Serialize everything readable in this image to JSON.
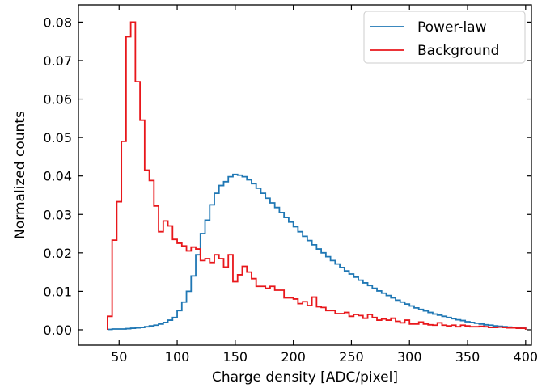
{
  "chart_data": {
    "type": "line",
    "style": "step histogram",
    "xlabel": "Charge density [ADC/pixel]",
    "ylabel": "Normalized counts",
    "xlim": [
      15,
      405
    ],
    "ylim": [
      -0.004,
      0.0845
    ],
    "xticks": [
      50,
      100,
      150,
      200,
      250,
      300,
      350,
      400
    ],
    "xtick_labels": [
      "50",
      "100",
      "150",
      "200",
      "250",
      "300",
      "350",
      "400"
    ],
    "yticks": [
      0.0,
      0.01,
      0.02,
      0.03,
      0.04,
      0.05,
      0.06,
      0.07,
      0.08
    ],
    "ytick_labels": [
      "0.00",
      "0.01",
      "0.02",
      "0.03",
      "0.04",
      "0.05",
      "0.06",
      "0.07",
      "0.08"
    ],
    "grid": false,
    "legend_position": "top-right",
    "bins": {
      "start": 40,
      "width": 4,
      "count": 90
    },
    "series": [
      {
        "name": "Power-law",
        "color": "#1f77b4",
        "values": [
          0.0001,
          0.0002,
          0.0002,
          0.0002,
          0.0003,
          0.0004,
          0.0005,
          0.0006,
          0.0008,
          0.001,
          0.0012,
          0.0015,
          0.0019,
          0.0025,
          0.0032,
          0.005,
          0.0072,
          0.01,
          0.014,
          0.0195,
          0.025,
          0.0285,
          0.0325,
          0.0355,
          0.0375,
          0.0385,
          0.0398,
          0.0404,
          0.0402,
          0.0398,
          0.039,
          0.038,
          0.0368,
          0.0355,
          0.0342,
          0.033,
          0.0318,
          0.0305,
          0.0292,
          0.028,
          0.0268,
          0.0255,
          0.0243,
          0.0232,
          0.0221,
          0.021,
          0.02,
          0.019,
          0.018,
          0.0171,
          0.0162,
          0.0153,
          0.0145,
          0.0137,
          0.0129,
          0.0122,
          0.0115,
          0.0108,
          0.0101,
          0.0095,
          0.0089,
          0.0083,
          0.0077,
          0.0072,
          0.0067,
          0.0062,
          0.0057,
          0.0053,
          0.0049,
          0.0045,
          0.0041,
          0.0038,
          0.0035,
          0.0032,
          0.0029,
          0.0026,
          0.0024,
          0.0021,
          0.0019,
          0.0017,
          0.0015,
          0.0013,
          0.0012,
          0.001,
          0.0009,
          0.0008,
          0.0007,
          0.0006,
          0.0005,
          0.0004
        ]
      },
      {
        "name": "Background",
        "color": "#e8171b",
        "values": [
          0.0035,
          0.0233,
          0.0333,
          0.049,
          0.0762,
          0.08,
          0.0645,
          0.0545,
          0.0415,
          0.0388,
          0.0322,
          0.0255,
          0.0283,
          0.027,
          0.0235,
          0.0225,
          0.0218,
          0.0205,
          0.0215,
          0.021,
          0.018,
          0.0185,
          0.0175,
          0.0195,
          0.0185,
          0.0163,
          0.0195,
          0.0125,
          0.0143,
          0.0165,
          0.015,
          0.0133,
          0.0113,
          0.0113,
          0.0108,
          0.0113,
          0.0103,
          0.0103,
          0.0083,
          0.0083,
          0.008,
          0.0068,
          0.0073,
          0.0063,
          0.0085,
          0.006,
          0.0058,
          0.005,
          0.005,
          0.0042,
          0.0042,
          0.0045,
          0.0035,
          0.004,
          0.0037,
          0.003,
          0.004,
          0.0032,
          0.0025,
          0.0028,
          0.0025,
          0.003,
          0.0022,
          0.0018,
          0.0025,
          0.0015,
          0.0015,
          0.002,
          0.0015,
          0.0013,
          0.0012,
          0.0018,
          0.0012,
          0.001,
          0.0012,
          0.0008,
          0.0012,
          0.001,
          0.0008,
          0.0008,
          0.0009,
          0.0008,
          0.0006,
          0.0006,
          0.0007,
          0.0006,
          0.0005,
          0.0005,
          0.0004,
          0.0004
        ]
      }
    ]
  }
}
